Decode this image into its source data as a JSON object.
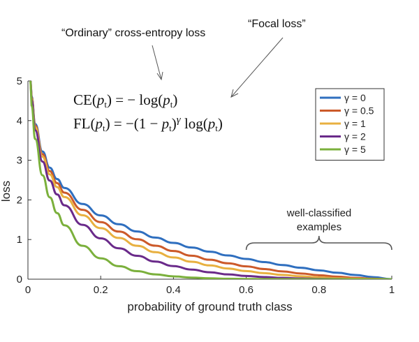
{
  "chart_data": {
    "type": "line",
    "xlabel": "probability of ground truth class",
    "ylabel": "loss",
    "xlim": [
      0,
      1
    ],
    "ylim": [
      0,
      5
    ],
    "xticks": [
      "0",
      "0.2",
      "0.4",
      "0.6",
      "0.8",
      "1"
    ],
    "yticks": [
      "0",
      "1",
      "2",
      "3",
      "4",
      "5"
    ],
    "grid": false,
    "legend_position": "top-right",
    "x": [
      0.01,
      0.02,
      0.04,
      0.06,
      0.08,
      0.1,
      0.15,
      0.2,
      0.25,
      0.3,
      0.35,
      0.4,
      0.45,
      0.5,
      0.55,
      0.6,
      0.65,
      0.7,
      0.75,
      0.8,
      0.85,
      0.9,
      0.95,
      1.0
    ],
    "series": [
      {
        "name": "γ = 0",
        "color": "#2f6fbf",
        "values": [
          4.605,
          3.912,
          3.219,
          2.813,
          2.526,
          2.303,
          1.897,
          1.609,
          1.386,
          1.204,
          1.05,
          0.916,
          0.799,
          0.693,
          0.598,
          0.511,
          0.431,
          0.357,
          0.288,
          0.223,
          0.163,
          0.105,
          0.051,
          0.0
        ]
      },
      {
        "name": "γ = 0.5",
        "color": "#cc5a2a",
        "values": [
          4.582,
          3.873,
          3.154,
          2.727,
          2.423,
          2.184,
          1.749,
          1.439,
          1.201,
          1.007,
          0.845,
          0.71,
          0.592,
          0.49,
          0.401,
          0.323,
          0.255,
          0.196,
          0.144,
          0.1,
          0.063,
          0.033,
          0.011,
          0.0
        ]
      },
      {
        "name": "γ = 1",
        "color": "#e8b040",
        "values": [
          4.559,
          3.834,
          3.09,
          2.644,
          2.324,
          2.072,
          1.613,
          1.287,
          1.04,
          0.843,
          0.682,
          0.549,
          0.44,
          0.347,
          0.269,
          0.204,
          0.151,
          0.107,
          0.072,
          0.045,
          0.024,
          0.011,
          0.003,
          0.0
        ]
      },
      {
        "name": "γ = 2",
        "color": "#6a2a8a",
        "values": [
          4.514,
          3.757,
          2.966,
          2.486,
          2.138,
          1.865,
          1.371,
          1.03,
          0.78,
          0.59,
          0.444,
          0.33,
          0.242,
          0.173,
          0.121,
          0.082,
          0.053,
          0.032,
          0.018,
          0.009,
          0.004,
          0.001,
          0.0,
          0.0
        ]
      },
      {
        "name": "γ = 5",
        "color": "#7bb03c",
        "values": [
          4.38,
          3.537,
          2.622,
          2.065,
          1.668,
          1.36,
          0.842,
          0.527,
          0.329,
          0.202,
          0.122,
          0.071,
          0.04,
          0.022,
          0.011,
          0.005,
          0.002,
          0.001,
          0.0,
          0.0,
          0.0,
          0.0,
          0.0,
          0.0
        ]
      }
    ]
  },
  "annotations": {
    "ce_label": "“Ordinary” cross-entropy loss",
    "fl_label": "“Focal loss”",
    "brace_line1": "well-classified",
    "brace_line2": "examples",
    "brace_range": [
      0.6,
      1.0
    ]
  }
}
